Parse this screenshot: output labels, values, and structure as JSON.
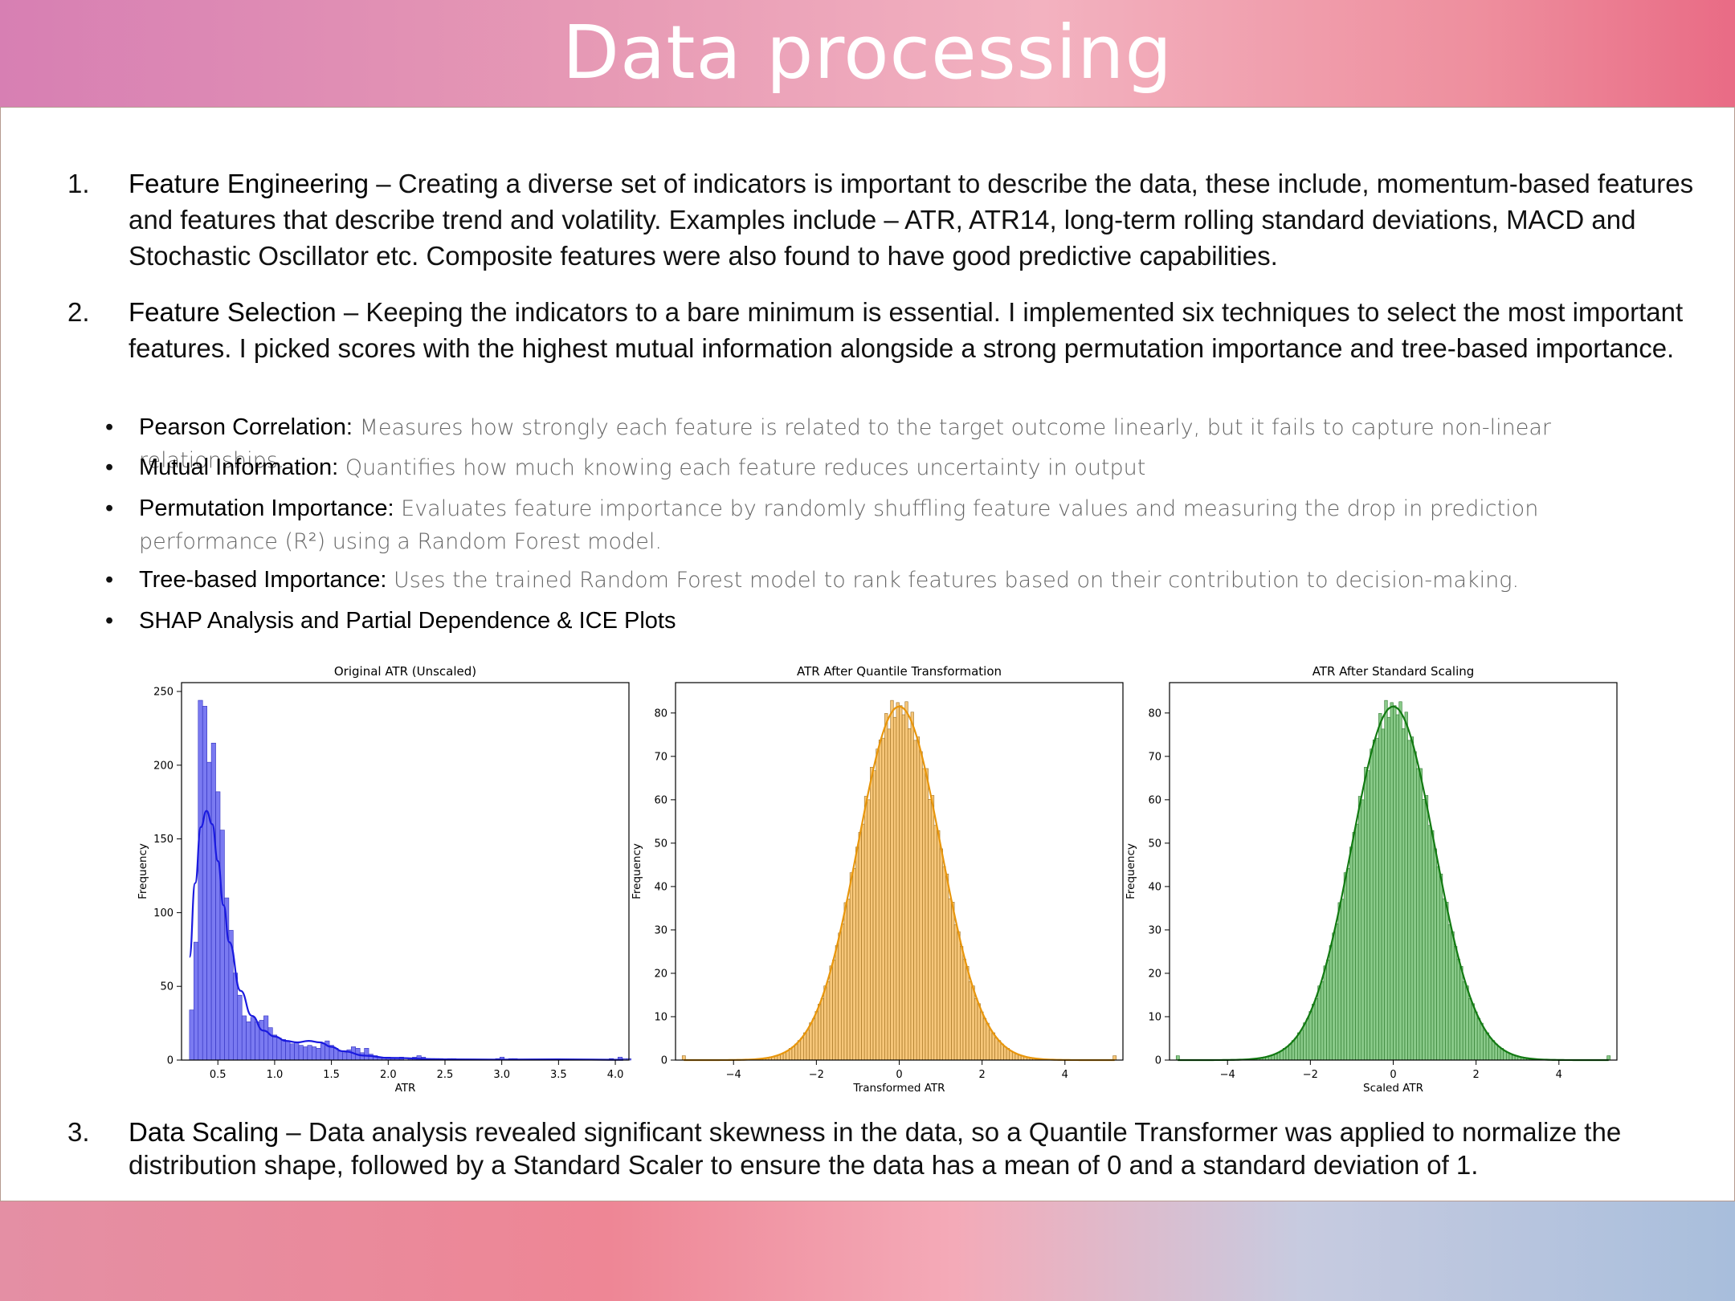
{
  "slide": {
    "title": "Data processing",
    "items": [
      {
        "num": "1.",
        "heading": "Feature Engineering",
        "sep": " – ",
        "text": "Creating a diverse set of indicators is important to describe the data, these include, momentum-based features and features that describe trend and volatility. Examples include – ATR, ATR14, long-term rolling standard deviations, MACD and Stochastic Oscillator etc. Composite features were also found to have good predictive capabilities."
      },
      {
        "num": "2.",
        "heading": "Feature Selection",
        "sep": " – ",
        "text": "Keeping the indicators to a bare minimum is essential. I implemented six techniques to select the most important features. I picked scores with the highest mutual information alongside a strong permutation importance and tree-based importance."
      },
      {
        "num": "3.",
        "heading": "Data Scaling",
        "sep": " – ",
        "text": "Data analysis revealed significant skewness in the data, so a Quantile Transformer was applied to normalize the distribution shape, followed by a Standard Scaler to ensure the data has a mean of 0 and a standard deviation of 1."
      }
    ],
    "bullets": [
      {
        "dot": "•",
        "label": "Pearson Correlation:",
        "desc": " Measures how strongly each feature is related to the target outcome linearly, but it fails to capture non-linear relationships."
      },
      {
        "dot": "•",
        "label": "Mutual Information:",
        "desc": " Quantifies how much knowing each feature reduces uncertainty in output"
      },
      {
        "dot": "•",
        "label": "Permutation Importance:",
        "desc": " Evaluates feature importance by randomly shuffling feature values and measuring the drop in prediction performance (R²) using a Random Forest model."
      },
      {
        "dot": "•",
        "label": "Tree-based Importance:",
        "desc": " Uses the trained Random Forest model to rank features based on their contribution to decision-making."
      },
      {
        "dot": "•",
        "label": "SHAP Analysis and Partial Dependence & ICE Plots",
        "desc": ""
      }
    ]
  },
  "chart_data": [
    {
      "type": "bar",
      "title": "Original ATR (Unscaled)",
      "xlabel": "ATR",
      "ylabel": "Frequency",
      "xlim": [
        0.18,
        4.12
      ],
      "ylim": [
        0,
        256
      ],
      "xticks": [
        0.5,
        1.0,
        1.5,
        2.0,
        2.5,
        3.0,
        3.5,
        4.0
      ],
      "xtick_labels": [
        "0.5",
        "1.0",
        "1.5",
        "2.0",
        "2.5",
        "3.0",
        "3.5",
        "4.0"
      ],
      "yticks": [
        0,
        50,
        100,
        150,
        200,
        250
      ],
      "color": "#6b6bf0",
      "edge": "#3232c0",
      "kde_color": "#1a1adf",
      "bin_start": 0.25,
      "bin_width": 0.0385,
      "values": [
        34,
        80,
        244,
        240,
        202,
        215,
        182,
        156,
        110,
        88,
        59,
        44,
        30,
        26,
        29,
        26,
        27,
        30,
        22,
        17,
        15,
        14,
        13,
        11,
        12,
        10,
        9,
        10,
        9,
        8,
        11,
        13,
        10,
        8,
        6,
        5,
        7,
        9,
        8,
        5,
        8,
        4,
        3,
        2,
        2,
        2,
        1,
        1,
        2,
        0,
        1,
        2,
        3,
        2,
        1,
        1,
        1,
        1,
        0,
        1,
        1,
        0,
        0,
        0,
        0,
        0,
        0,
        0,
        0,
        0,
        1,
        2,
        0,
        1,
        1,
        0,
        0,
        0,
        0,
        0,
        0,
        0,
        0,
        0,
        0,
        0,
        0,
        0,
        0,
        0,
        0,
        0,
        0,
        0,
        0,
        0,
        1,
        0,
        2,
        1,
        1
      ],
      "kde_x": [
        0.25,
        0.3,
        0.35,
        0.4,
        0.45,
        0.5,
        0.55,
        0.6,
        0.7,
        0.8,
        0.9,
        1.0,
        1.1,
        1.2,
        1.3,
        1.4,
        1.5,
        1.6,
        1.8,
        2.0,
        2.5,
        3.0,
        3.5,
        4.07
      ],
      "kde_y": [
        70,
        120,
        158,
        169,
        160,
        135,
        105,
        80,
        47,
        30,
        20,
        16,
        13,
        12,
        13,
        12,
        9,
        6,
        3,
        1.5,
        0.5,
        0.3,
        0.5,
        0.2
      ]
    },
    {
      "type": "bar",
      "title": "ATR After Quantile Transformation",
      "xlabel": "Transformed ATR",
      "ylabel": "Frequency",
      "xlim": [
        -5.4,
        5.4
      ],
      "ylim": [
        0,
        87
      ],
      "xticks": [
        -4,
        -2,
        0,
        2,
        4
      ],
      "xtick_labels": [
        "−4",
        "−2",
        "0",
        "2",
        "4"
      ],
      "yticks": [
        0,
        10,
        20,
        30,
        40,
        50,
        60,
        70,
        80
      ],
      "color": "#f5c06a",
      "edge": "#a07020",
      "kde_color": "#e8960c",
      "bins": {
        "x0": -3.5,
        "x1": 3.5,
        "count": 100
      },
      "gauss": {
        "amp": 81.5,
        "sigma": 1.0
      },
      "outliers": [
        {
          "x": -5.2,
          "v": 1
        },
        {
          "x": 5.2,
          "v": 1
        }
      ]
    },
    {
      "type": "bar",
      "title": "ATR After Standard Scaling",
      "xlabel": "Scaled ATR",
      "ylabel": "Frequency",
      "xlim": [
        -5.4,
        5.4
      ],
      "ylim": [
        0,
        87
      ],
      "xticks": [
        -4,
        -2,
        0,
        2,
        4
      ],
      "xtick_labels": [
        "−4",
        "−2",
        "0",
        "2",
        "4"
      ],
      "yticks": [
        0,
        10,
        20,
        30,
        40,
        50,
        60,
        70,
        80
      ],
      "color": "#7cc47c",
      "edge": "#2f7a2f",
      "kde_color": "#127a12",
      "bins": {
        "x0": -3.5,
        "x1": 3.5,
        "count": 100
      },
      "gauss": {
        "amp": 81.5,
        "sigma": 1.0
      },
      "outliers": [
        {
          "x": -5.2,
          "v": 1
        },
        {
          "x": 5.2,
          "v": 1
        }
      ]
    }
  ]
}
